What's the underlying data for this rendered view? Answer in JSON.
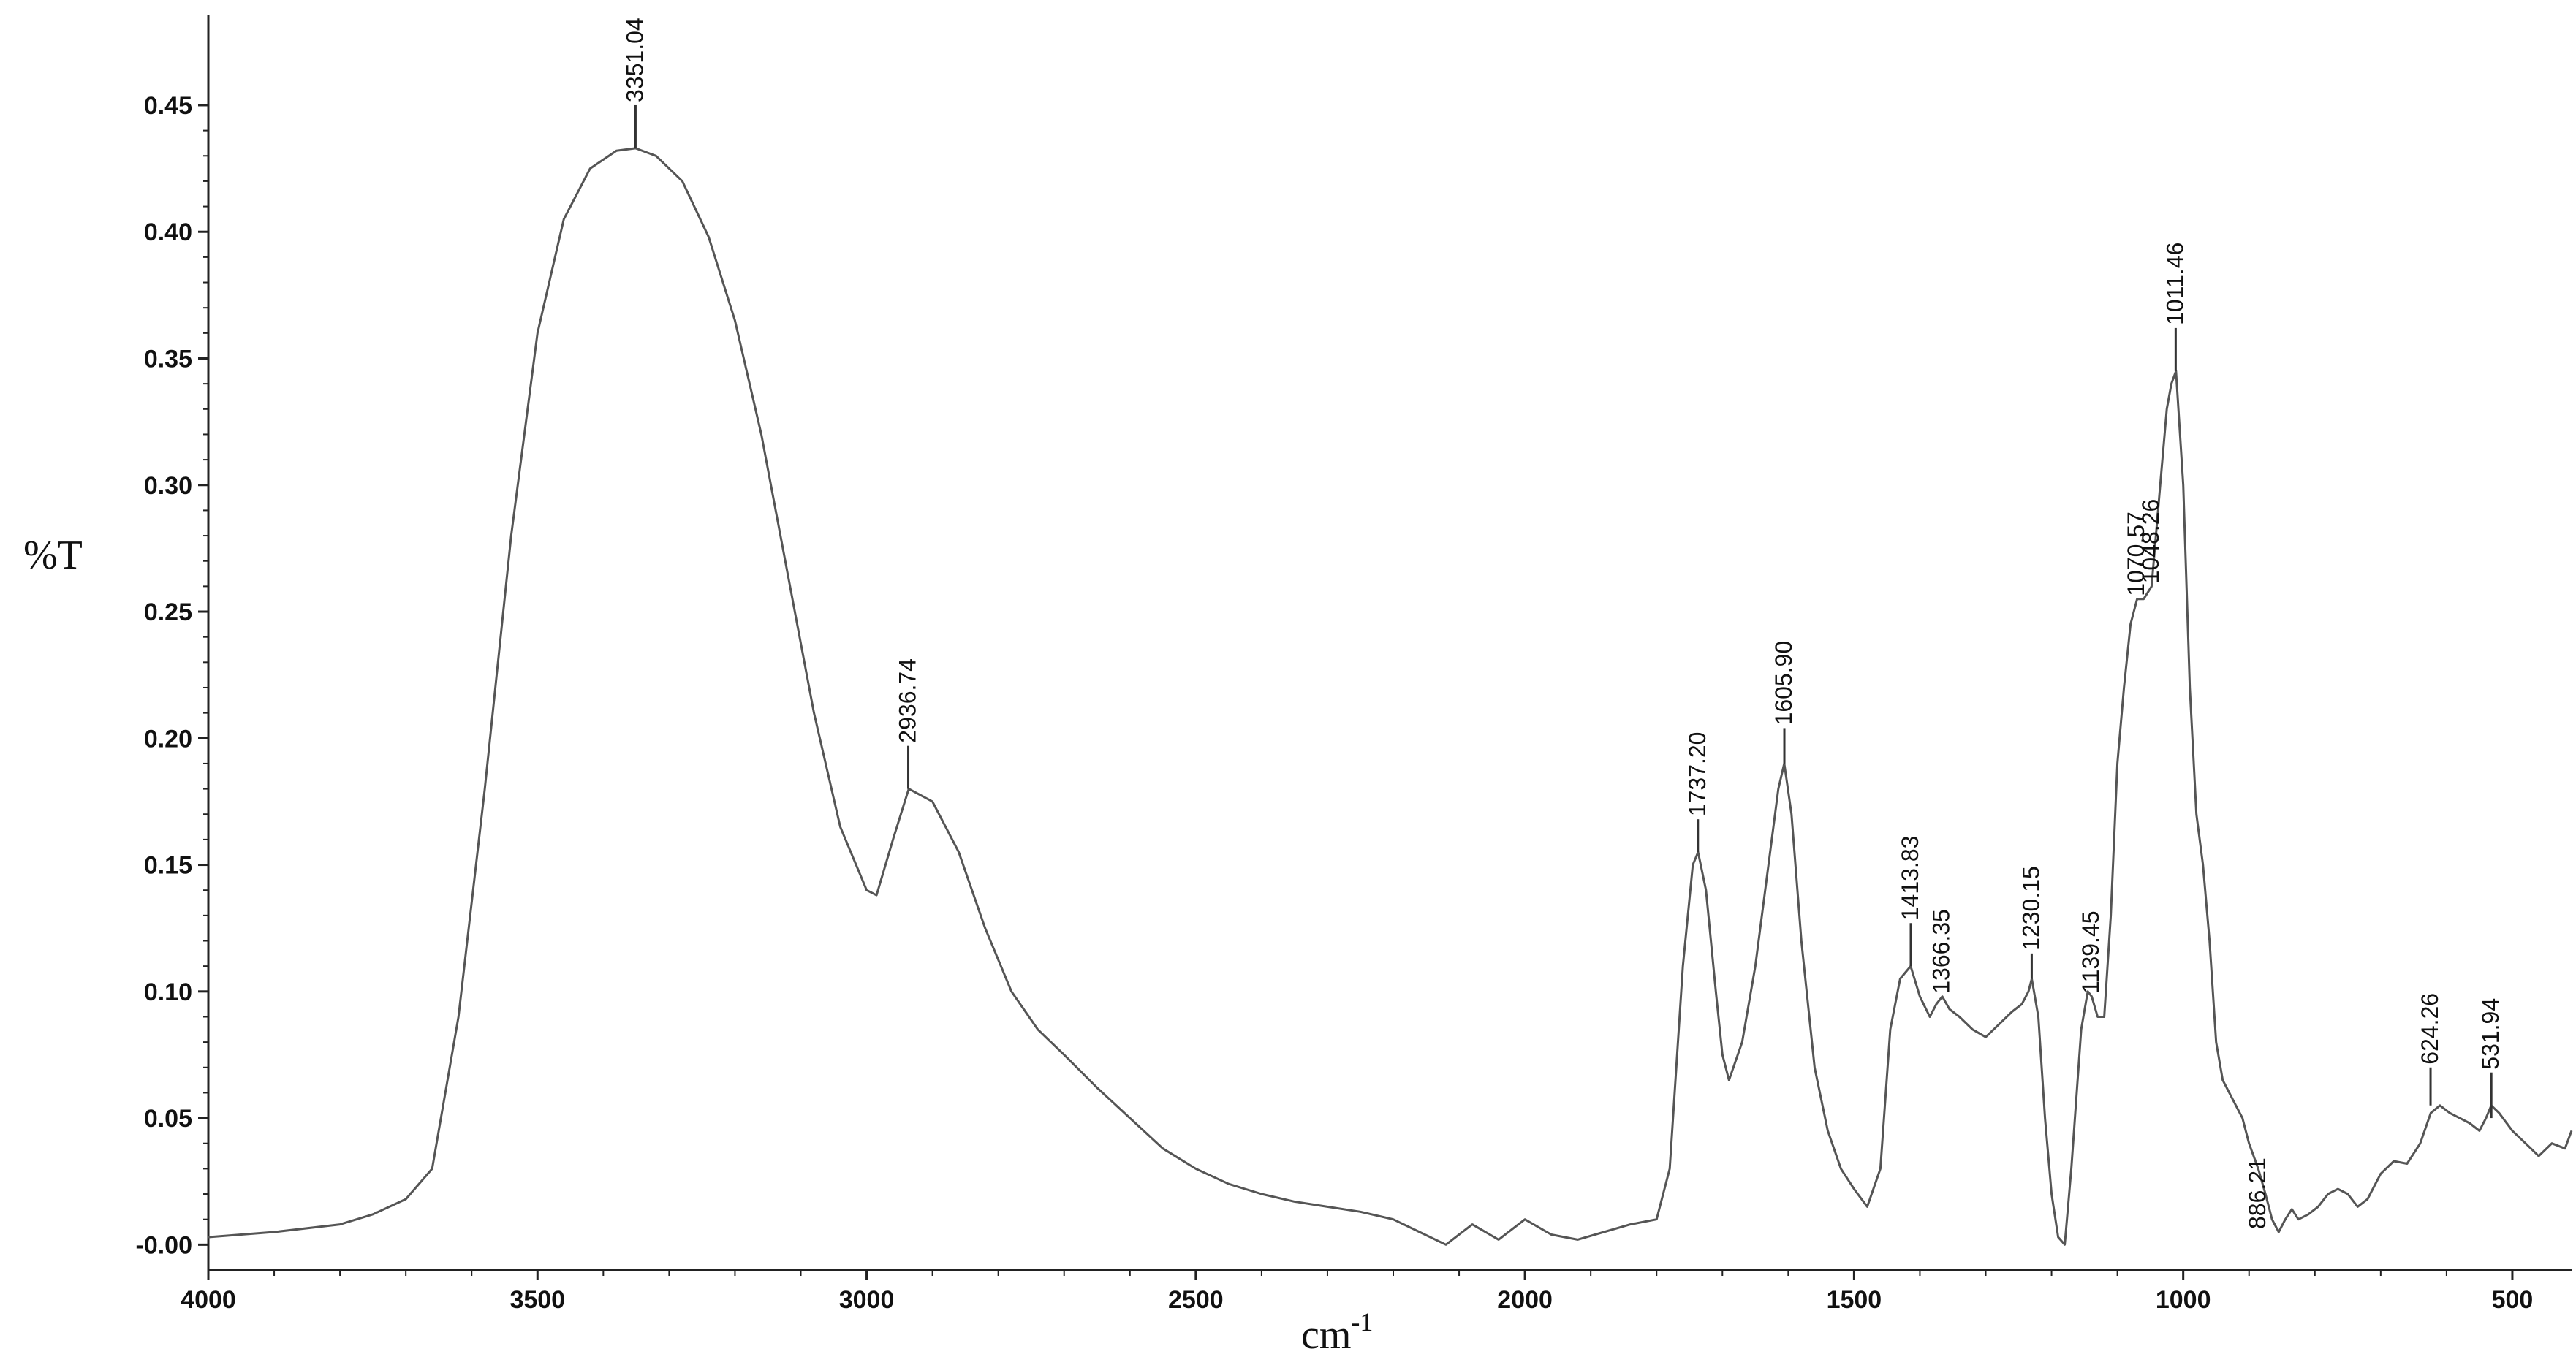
{
  "chart_data": {
    "type": "line",
    "title": "",
    "xlabel": "cm",
    "xlabel_superscript": "-1",
    "ylabel": "%T",
    "xlim": [
      4000,
      410
    ],
    "ylim": [
      -0.01,
      0.48
    ],
    "x_reversed": true,
    "grid": false,
    "legend": "none",
    "line_color": "#555555",
    "x_ticks": [
      4000,
      3500,
      3000,
      2500,
      2000,
      1500,
      1000,
      500
    ],
    "x_tick_labels": [
      "4000",
      "3500",
      "3000",
      "2500",
      "2000",
      "1500",
      "1000",
      "500"
    ],
    "y_ticks": [
      0.0,
      0.05,
      0.1,
      0.15,
      0.2,
      0.25,
      0.3,
      0.35,
      0.4,
      0.45
    ],
    "y_tick_labels": [
      "-0.00",
      "0.05",
      "0.10",
      "0.15",
      "0.20",
      "0.25",
      "0.30",
      "0.35",
      "0.40",
      "0.45"
    ],
    "series": [
      {
        "x": [
          4000,
          3900,
          3800,
          3750,
          3700,
          3660,
          3620,
          3580,
          3540,
          3500,
          3460,
          3420,
          3380,
          3351,
          3320,
          3280,
          3240,
          3200,
          3160,
          3120,
          3080,
          3040,
          3000,
          2985,
          2960,
          2936,
          2900,
          2860,
          2820,
          2780,
          2740,
          2700,
          2650,
          2600,
          2550,
          2500,
          2450,
          2400,
          2350,
          2300,
          2250,
          2200,
          2160,
          2120,
          2080,
          2040,
          2000,
          1960,
          1920,
          1880,
          1840,
          1800,
          1780,
          1760,
          1745,
          1737,
          1725,
          1710,
          1700,
          1690,
          1670,
          1650,
          1630,
          1615,
          1606,
          1595,
          1580,
          1560,
          1540,
          1520,
          1500,
          1480,
          1460,
          1445,
          1430,
          1414,
          1400,
          1385,
          1375,
          1366,
          1355,
          1340,
          1320,
          1300,
          1280,
          1260,
          1245,
          1235,
          1230,
          1220,
          1210,
          1200,
          1190,
          1180,
          1170,
          1155,
          1145,
          1139,
          1130,
          1120,
          1110,
          1100,
          1090,
          1080,
          1070,
          1060,
          1048,
          1035,
          1025,
          1018,
          1011,
          1000,
          990,
          980,
          970,
          960,
          950,
          940,
          930,
          920,
          910,
          900,
          886,
          875,
          865,
          855,
          845,
          835,
          825,
          810,
          795,
          780,
          765,
          750,
          735,
          720,
          700,
          680,
          660,
          640,
          624,
          610,
          595,
          580,
          565,
          550,
          540,
          532,
          520,
          500,
          480,
          460,
          440,
          420,
          410
        ],
        "y": [
          0.003,
          0.005,
          0.008,
          0.012,
          0.018,
          0.03,
          0.09,
          0.18,
          0.28,
          0.36,
          0.405,
          0.425,
          0.432,
          0.433,
          0.43,
          0.42,
          0.398,
          0.365,
          0.32,
          0.265,
          0.21,
          0.165,
          0.14,
          0.138,
          0.16,
          0.18,
          0.175,
          0.155,
          0.125,
          0.1,
          0.085,
          0.075,
          0.062,
          0.05,
          0.038,
          0.03,
          0.024,
          0.02,
          0.017,
          0.015,
          0.013,
          0.01,
          0.005,
          0.0,
          0.008,
          0.002,
          0.01,
          0.004,
          0.002,
          0.005,
          0.008,
          0.01,
          0.03,
          0.11,
          0.15,
          0.155,
          0.14,
          0.1,
          0.075,
          0.065,
          0.08,
          0.11,
          0.15,
          0.18,
          0.19,
          0.17,
          0.12,
          0.07,
          0.045,
          0.03,
          0.022,
          0.015,
          0.03,
          0.085,
          0.105,
          0.11,
          0.098,
          0.09,
          0.095,
          0.098,
          0.093,
          0.09,
          0.085,
          0.082,
          0.087,
          0.092,
          0.095,
          0.1,
          0.105,
          0.09,
          0.05,
          0.02,
          0.003,
          0.0,
          0.03,
          0.085,
          0.1,
          0.098,
          0.09,
          0.09,
          0.13,
          0.19,
          0.22,
          0.245,
          0.255,
          0.255,
          0.26,
          0.3,
          0.33,
          0.34,
          0.345,
          0.3,
          0.22,
          0.17,
          0.15,
          0.12,
          0.08,
          0.065,
          0.06,
          0.055,
          0.05,
          0.04,
          0.03,
          0.02,
          0.01,
          0.005,
          0.01,
          0.014,
          0.01,
          0.012,
          0.015,
          0.02,
          0.022,
          0.02,
          0.015,
          0.018,
          0.028,
          0.033,
          0.032,
          0.04,
          0.052,
          0.055,
          0.052,
          0.05,
          0.048,
          0.045,
          0.05,
          0.055,
          0.052,
          0.045,
          0.04,
          0.035,
          0.04,
          0.038,
          0.045
        ]
      }
    ],
    "annotations": [
      {
        "text": "3351.04",
        "x": 3351.04,
        "y_tip": 0.45,
        "y_base": 0.433
      },
      {
        "text": "2936.74",
        "x": 2936.74,
        "y_tip": 0.197,
        "y_base": 0.18
      },
      {
        "text": "1737.20",
        "x": 1737.2,
        "y_tip": 0.168,
        "y_base": 0.155
      },
      {
        "text": "1605.90",
        "x": 1605.9,
        "y_tip": 0.204,
        "y_base": 0.19
      },
      {
        "text": "1413.83",
        "x": 1413.83,
        "y_tip": 0.127,
        "y_base": 0.11
      },
      {
        "text": "1366.35",
        "x": 1366.35,
        "y_tip": 0.098,
        "y_base": 0.098
      },
      {
        "text": "1230.15",
        "x": 1230.15,
        "y_tip": 0.115,
        "y_base": 0.105
      },
      {
        "text": "1139.45",
        "x": 1139.45,
        "y_tip": 0.098,
        "y_base": 0.098
      },
      {
        "text": "1070.57",
        "x": 1070.57,
        "y_tip": 0.255,
        "y_base": 0.255
      },
      {
        "text": "1048.26",
        "x": 1048.26,
        "y_tip": 0.26,
        "y_base": 0.26
      },
      {
        "text": "1011.46",
        "x": 1011.46,
        "y_tip": 0.362,
        "y_base": 0.345
      },
      {
        "text": "886.21",
        "x": 886.21,
        "y_tip": 0.005,
        "y_base": 0.005
      },
      {
        "text": "624.26",
        "x": 624.26,
        "y_tip": 0.07,
        "y_base": 0.055
      },
      {
        "text": "531.94",
        "x": 531.94,
        "y_tip": 0.068,
        "y_base": 0.05
      }
    ]
  }
}
